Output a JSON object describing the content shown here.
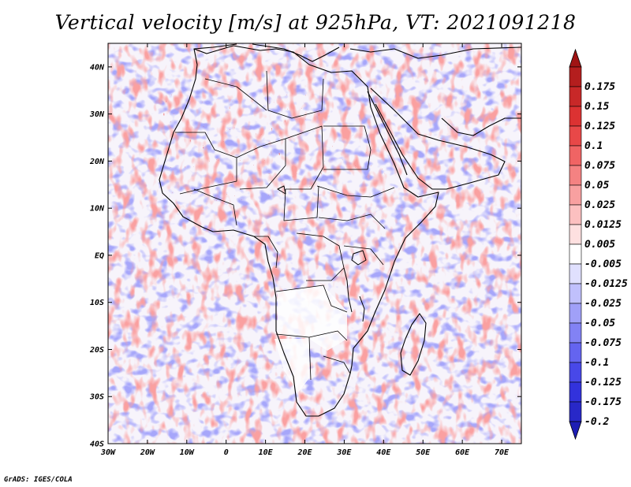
{
  "title": "Vertical velocity [m/s] at 925hPa, VT: 2021091218",
  "footer": "GrADS: IGES/COLA",
  "map": {
    "lon_range": [
      -30,
      75
    ],
    "lat_range": [
      -40,
      45
    ],
    "lon_ticks": [
      {
        "value": -30,
        "label": "30W"
      },
      {
        "value": -20,
        "label": "20W"
      },
      {
        "value": -10,
        "label": "10W"
      },
      {
        "value": 0,
        "label": "0"
      },
      {
        "value": 10,
        "label": "10E"
      },
      {
        "value": 20,
        "label": "20E"
      },
      {
        "value": 30,
        "label": "30E"
      },
      {
        "value": 40,
        "label": "40E"
      },
      {
        "value": 50,
        "label": "50E"
      },
      {
        "value": 60,
        "label": "60E"
      },
      {
        "value": 70,
        "label": "70E"
      }
    ],
    "lat_ticks": [
      {
        "value": 40,
        "label": "40N"
      },
      {
        "value": 30,
        "label": "30N"
      },
      {
        "value": 20,
        "label": "20N"
      },
      {
        "value": 10,
        "label": "10N"
      },
      {
        "value": 0,
        "label": "EQ"
      },
      {
        "value": -10,
        "label": "10S"
      },
      {
        "value": -20,
        "label": "20S"
      },
      {
        "value": -30,
        "label": "30S"
      },
      {
        "value": -40,
        "label": "40S"
      }
    ]
  },
  "colorbar": {
    "levels": [
      {
        "label": "0.175",
        "color": "#b41e1e"
      },
      {
        "label": "0.15",
        "color": "#c82828"
      },
      {
        "label": "0.125",
        "color": "#dc3232"
      },
      {
        "label": "0.1",
        "color": "#e84848"
      },
      {
        "label": "0.075",
        "color": "#f06464"
      },
      {
        "label": "0.05",
        "color": "#f48282"
      },
      {
        "label": "0.025",
        "color": "#f8a0a0"
      },
      {
        "label": "0.0125",
        "color": "#fcc0c0"
      },
      {
        "label": "0.005",
        "color": "#fee0e0"
      },
      {
        "label": "-0.005",
        "color": "#ffffff"
      },
      {
        "label": "-0.0125",
        "color": "#e0e0fe"
      },
      {
        "label": "-0.025",
        "color": "#c0c0fc"
      },
      {
        "label": "-0.05",
        "color": "#a0a0f8"
      },
      {
        "label": "-0.075",
        "color": "#8282f4"
      },
      {
        "label": "-0.1",
        "color": "#6464f0"
      },
      {
        "label": "-0.125",
        "color": "#4848e8"
      },
      {
        "label": "-0.175",
        "color": "#3232dc"
      },
      {
        "label": "-0.2",
        "color": "#2828c8"
      }
    ],
    "top_arrow_color": "#a01414",
    "bottom_arrow_color": "#1e1eb4"
  }
}
